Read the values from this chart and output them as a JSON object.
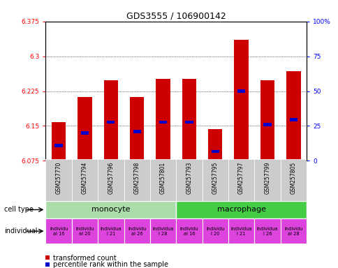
{
  "title": "GDS3555 / 106900142",
  "samples": [
    "GSM257770",
    "GSM257794",
    "GSM257796",
    "GSM257798",
    "GSM257801",
    "GSM257793",
    "GSM257795",
    "GSM257797",
    "GSM257799",
    "GSM257805"
  ],
  "bar_values": [
    6.158,
    6.213,
    6.248,
    6.213,
    6.252,
    6.252,
    6.143,
    6.335,
    6.248,
    6.268
  ],
  "bar_bottom": 6.075,
  "percentile_values": [
    6.108,
    6.135,
    6.158,
    6.138,
    6.158,
    6.158,
    6.095,
    6.225,
    6.153,
    6.163
  ],
  "ylim_left": [
    6.075,
    6.375
  ],
  "ylim_right": [
    0,
    100
  ],
  "yticks_left": [
    6.075,
    6.15,
    6.225,
    6.3,
    6.375
  ],
  "ytick_labels_left": [
    "6.075",
    "6.15",
    "6.225",
    "6.3",
    "6.375"
  ],
  "yticks_right": [
    0,
    25,
    50,
    75,
    100
  ],
  "ytick_labels_right": [
    "0",
    "25",
    "50",
    "75",
    "100%"
  ],
  "bar_color": "#cc0000",
  "percentile_color": "#0000cc",
  "cell_types": [
    {
      "label": "monocyte",
      "start": 0,
      "end": 5,
      "color": "#aaddaa"
    },
    {
      "label": "macrophage",
      "start": 5,
      "end": 10,
      "color": "#44cc44"
    }
  ],
  "indiv_labels": [
    "individu\nal 16",
    "individu\nal 20",
    "individua\nl 21",
    "individu\nal 26",
    "individua\nl 28",
    "individu\nal 16",
    "individu\nl 20",
    "individua\nl 21",
    "individua\nl 26",
    "individu\nal 28"
  ],
  "individual_color": "#dd44dd",
  "legend_red": "transformed count",
  "legend_blue": "percentile rank within the sample",
  "cell_type_label": "cell type",
  "individual_label": "individual",
  "sample_bg_color": "#cccccc"
}
